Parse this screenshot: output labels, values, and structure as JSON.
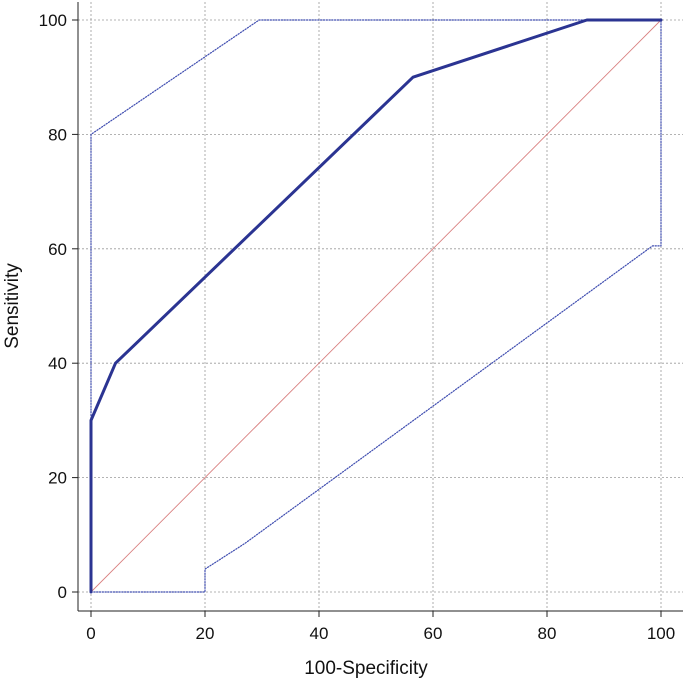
{
  "chart_data": {
    "type": "line",
    "title": "",
    "xlabel": "100-Specificity",
    "ylabel": "Sensitivity",
    "xlim": [
      0,
      100
    ],
    "ylim": [
      0,
      100
    ],
    "xticks": [
      0,
      20,
      40,
      60,
      80,
      100
    ],
    "yticks": [
      0,
      20,
      40,
      60,
      80,
      100
    ],
    "grid": true,
    "series": [
      {
        "role": "roc-curve",
        "color": "#2b3492",
        "style": "solid",
        "points": [
          [
            0,
            0
          ],
          [
            0,
            30
          ],
          [
            4.3,
            40
          ],
          [
            56.5,
            90
          ],
          [
            87,
            100
          ],
          [
            100,
            100
          ]
        ]
      },
      {
        "role": "upper-confidence-bound",
        "color": "#3f4db0",
        "style": "dotted",
        "points": [
          [
            0,
            0
          ],
          [
            0,
            80
          ],
          [
            29.5,
            100
          ],
          [
            100,
            100
          ]
        ]
      },
      {
        "role": "lower-confidence-bound",
        "color": "#3f4db0",
        "style": "dotted",
        "points": [
          [
            0,
            0
          ],
          [
            20,
            0
          ],
          [
            20,
            4
          ],
          [
            27,
            8.5
          ],
          [
            98.5,
            60.5
          ],
          [
            100,
            60.5
          ],
          [
            100,
            100
          ]
        ]
      },
      {
        "role": "reference-diagonal",
        "color": "#d98080",
        "style": "solid",
        "points": [
          [
            0,
            0
          ],
          [
            100,
            100
          ]
        ]
      }
    ]
  }
}
